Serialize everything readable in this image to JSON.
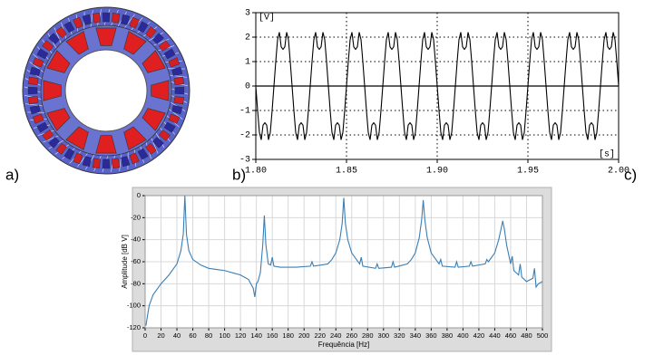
{
  "labels": {
    "a": "a)",
    "b": "b)",
    "c": "c)"
  },
  "chart_data": [
    {
      "type": "line",
      "ylabel": "[V]",
      "xlabel": "[s]",
      "color": "#000000",
      "grid": true,
      "xlim": [
        1.8,
        2.0
      ],
      "ylim": [
        -3,
        3
      ],
      "xticks": [
        {
          "value": 1.8,
          "label": "1.80"
        },
        1.85,
        {
          "value": 1.9,
          "label": "1.90"
        },
        1.95,
        {
          "value": 2.0,
          "label": "2.00"
        }
      ],
      "yticks": [
        -3,
        -2,
        -1,
        0,
        1,
        2,
        3
      ],
      "x": [
        1.8,
        1.801,
        1.802,
        1.803,
        1.804,
        1.805,
        1.806,
        1.807,
        1.808,
        1.809,
        1.81,
        1.811,
        1.812,
        1.813,
        1.814,
        1.815,
        1.816,
        1.817,
        1.818,
        1.819,
        1.82,
        1.821,
        1.822,
        1.823,
        1.824,
        1.825,
        1.826,
        1.827,
        1.828,
        1.829,
        1.83,
        1.831,
        1.832,
        1.833,
        1.834,
        1.835,
        1.836,
        1.837,
        1.838,
        1.839,
        1.84,
        1.841,
        1.842,
        1.843,
        1.844,
        1.845,
        1.846,
        1.847,
        1.848,
        1.849,
        1.85,
        1.851,
        1.852,
        1.853,
        1.854,
        1.855,
        1.856,
        1.857,
        1.858,
        1.859,
        1.86,
        1.861,
        1.862,
        1.863,
        1.864,
        1.865,
        1.866,
        1.867,
        1.868,
        1.869,
        1.87,
        1.871,
        1.872,
        1.873,
        1.874,
        1.875,
        1.876,
        1.877,
        1.878,
        1.879,
        1.88,
        1.881,
        1.882,
        1.883,
        1.884,
        1.885,
        1.886,
        1.887,
        1.888,
        1.889,
        1.89,
        1.891,
        1.892,
        1.893,
        1.894,
        1.895,
        1.896,
        1.897,
        1.898,
        1.899,
        1.9,
        1.901,
        1.902,
        1.903,
        1.904,
        1.905,
        1.906,
        1.907,
        1.908,
        1.909,
        1.91,
        1.911,
        1.912,
        1.913,
        1.914,
        1.915,
        1.916,
        1.917,
        1.918,
        1.919,
        1.92,
        1.921,
        1.922,
        1.923,
        1.924,
        1.925,
        1.926,
        1.927,
        1.928,
        1.929,
        1.93,
        1.931,
        1.932,
        1.933,
        1.934,
        1.935,
        1.936,
        1.937,
        1.938,
        1.939,
        1.94,
        1.941,
        1.942,
        1.943,
        1.944,
        1.945,
        1.946,
        1.947,
        1.948,
        1.949,
        1.95,
        1.951,
        1.952,
        1.953,
        1.954,
        1.955,
        1.956,
        1.957,
        1.958,
        1.959,
        1.96,
        1.961,
        1.962,
        1.963,
        1.964,
        1.965,
        1.966,
        1.967,
        1.968,
        1.969,
        1.97,
        1.971,
        1.972,
        1.973,
        1.974,
        1.975,
        1.976,
        1.977,
        1.978,
        1.979,
        1.98,
        1.981,
        1.982,
        1.983,
        1.984,
        1.985,
        1.986,
        1.987,
        1.988,
        1.989,
        1.99,
        1.991,
        1.992,
        1.993,
        1.994,
        1.995,
        1.996,
        1.997,
        1.998,
        1.999,
        2.0
      ],
      "values": [
        0,
        -1.0,
        -1.9,
        -2.2,
        -1.6,
        -1.5,
        -1.6,
        -2.2,
        -1.9,
        -1.0,
        0,
        1.0,
        1.9,
        2.2,
        1.6,
        1.5,
        1.6,
        2.2,
        1.9,
        1.0,
        0,
        -1.0,
        -1.9,
        -2.2,
        -1.6,
        -1.5,
        -1.6,
        -2.2,
        -1.9,
        -1.0,
        0,
        1.0,
        1.9,
        2.2,
        1.6,
        1.5,
        1.6,
        2.2,
        1.9,
        1.0,
        0,
        -1.0,
        -1.9,
        -2.2,
        -1.6,
        -1.5,
        -1.6,
        -2.2,
        -1.9,
        -1.0,
        0,
        1.0,
        1.9,
        2.2,
        1.6,
        1.5,
        1.6,
        2.2,
        1.9,
        1.0,
        0,
        -1.0,
        -1.9,
        -2.2,
        -1.6,
        -1.5,
        -1.6,
        -2.2,
        -1.9,
        -1.0,
        0,
        1.0,
        1.9,
        2.2,
        1.6,
        1.5,
        1.6,
        2.2,
        1.9,
        1.0,
        0,
        -1.0,
        -1.9,
        -2.2,
        -1.6,
        -1.5,
        -1.6,
        -2.2,
        -1.9,
        -1.0,
        0,
        1.0,
        1.9,
        2.2,
        1.6,
        1.5,
        1.6,
        2.2,
        1.9,
        1.0,
        0,
        -1.0,
        -1.9,
        -2.2,
        -1.6,
        -1.5,
        -1.6,
        -2.2,
        -1.9,
        -1.0,
        0,
        1.0,
        1.9,
        2.2,
        1.6,
        1.5,
        1.6,
        2.2,
        1.9,
        1.0,
        0,
        -1.0,
        -1.9,
        -2.2,
        -1.6,
        -1.5,
        -1.6,
        -2.2,
        -1.9,
        -1.0,
        0,
        1.0,
        1.9,
        2.2,
        1.6,
        1.5,
        1.6,
        2.2,
        1.9,
        1.0,
        0,
        -1.0,
        -1.9,
        -2.2,
        -1.6,
        -1.5,
        -1.6,
        -2.2,
        -1.9,
        -1.0,
        0,
        1.0,
        1.9,
        2.2,
        1.6,
        1.5,
        1.6,
        2.2,
        1.9,
        1.0,
        0,
        -1.0,
        -1.9,
        -2.2,
        -1.6,
        -1.5,
        -1.6,
        -2.2,
        -1.9,
        -1.0,
        0,
        1.0,
        1.9,
        2.2,
        1.6,
        1.5,
        1.6,
        2.2,
        1.9,
        1.0,
        0,
        -1.0,
        -1.9,
        -2.2,
        -1.6,
        -1.5,
        -1.6,
        -2.2,
        -1.9,
        -1.0,
        0,
        1.0,
        1.9,
        2.2,
        1.6,
        1.5,
        1.6,
        2.2,
        1.9,
        1.0,
        0
      ]
    },
    {
      "type": "line",
      "ylabel": "Amplitude [dB V]",
      "xlabel": "Frequência [Hz]",
      "color": "#3a7fb5",
      "grid": true,
      "xlim": [
        0,
        500
      ],
      "ylim": [
        -120,
        0
      ],
      "xticks": [
        0,
        20,
        40,
        60,
        80,
        100,
        120,
        140,
        160,
        180,
        200,
        220,
        240,
        260,
        280,
        300,
        320,
        340,
        360,
        380,
        400,
        420,
        440,
        460,
        480,
        500
      ],
      "yticks": [
        -120,
        -100,
        -80,
        -60,
        -40,
        -20,
        0
      ],
      "x": [
        1,
        5,
        10,
        20,
        30,
        40,
        45,
        48,
        50,
        52,
        55,
        60,
        70,
        80,
        90,
        100,
        110,
        120,
        130,
        136,
        138,
        140,
        142,
        145,
        148,
        150,
        152,
        155,
        158,
        160,
        162,
        170,
        190,
        208,
        210,
        212,
        230,
        235,
        240,
        245,
        248,
        250,
        252,
        255,
        260,
        270,
        272,
        274,
        290,
        292,
        294,
        310,
        312,
        314,
        330,
        335,
        340,
        345,
        348,
        350,
        352,
        355,
        360,
        370,
        372,
        374,
        390,
        392,
        394,
        408,
        410,
        412,
        428,
        430,
        432,
        440,
        445,
        448,
        450,
        452,
        455,
        460,
        462,
        464,
        470,
        472,
        474,
        480,
        488,
        490,
        492,
        495,
        500
      ],
      "values": [
        -118,
        -100,
        -90,
        -80,
        -72,
        -62,
        -50,
        -35,
        0,
        -35,
        -50,
        -58,
        -63,
        -66,
        -67,
        -68,
        -70,
        -72,
        -76,
        -84,
        -92,
        -80,
        -78,
        -70,
        -45,
        -18,
        -45,
        -62,
        -63,
        -56,
        -64,
        -65,
        -65,
        -64,
        -60,
        -64,
        -62,
        -58,
        -52,
        -40,
        -25,
        -2,
        -25,
        -40,
        -52,
        -62,
        -56,
        -64,
        -66,
        -62,
        -66,
        -65,
        -60,
        -65,
        -62,
        -58,
        -52,
        -38,
        -22,
        -4,
        -22,
        -38,
        -52,
        -62,
        -58,
        -64,
        -65,
        -60,
        -65,
        -64,
        -60,
        -64,
        -62,
        -58,
        -60,
        -52,
        -40,
        -30,
        -23,
        -30,
        -45,
        -62,
        -55,
        -68,
        -72,
        -62,
        -74,
        -78,
        -75,
        -66,
        -83,
        -80,
        -78
      ]
    }
  ]
}
